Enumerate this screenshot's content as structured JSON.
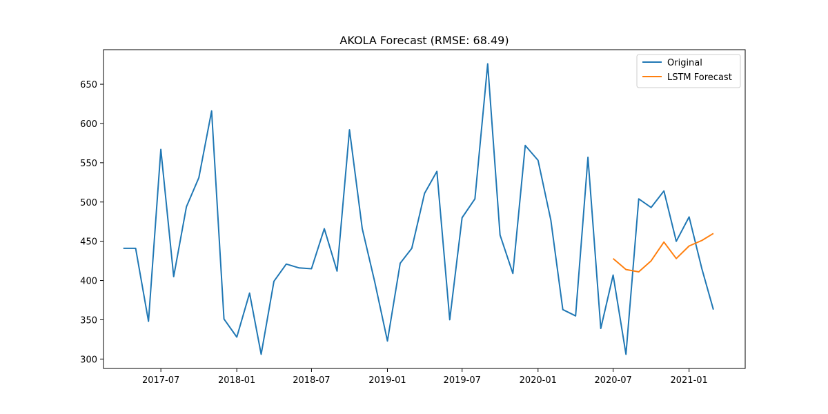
{
  "chart_data": {
    "type": "line",
    "title": "AKOLA Forecast (RMSE: 68.49)",
    "xlabel": "",
    "ylabel": "",
    "x_ticks": [
      "2017-07",
      "2018-01",
      "2018-07",
      "2019-01",
      "2019-07",
      "2020-01",
      "2020-07",
      "2021-01"
    ],
    "y_ticks": [
      300,
      350,
      400,
      450,
      500,
      550,
      600,
      650
    ],
    "xlim": [
      "2017-02-12",
      "2021-05-17"
    ],
    "ylim": [
      288,
      694
    ],
    "grid": false,
    "legend_position": "top-right",
    "series": [
      {
        "name": "Original",
        "color": "#1f77b4",
        "x": [
          "2017-04",
          "2017-05",
          "2017-06",
          "2017-07",
          "2017-08",
          "2017-09",
          "2017-10",
          "2017-11",
          "2017-12",
          "2018-01",
          "2018-02",
          "2018-03",
          "2018-04",
          "2018-05",
          "2018-06",
          "2018-07",
          "2018-08",
          "2018-09",
          "2018-10",
          "2018-11",
          "2018-12",
          "2019-01",
          "2019-02",
          "2019-03",
          "2019-04",
          "2019-05",
          "2019-06",
          "2019-07",
          "2019-08",
          "2019-09",
          "2019-10",
          "2019-11",
          "2019-12",
          "2020-01",
          "2020-02",
          "2020-03",
          "2020-04",
          "2020-05",
          "2020-06",
          "2020-07",
          "2020-08",
          "2020-09",
          "2020-10",
          "2020-11",
          "2020-12",
          "2021-01",
          "2021-02",
          "2021-03"
        ],
        "values": [
          441,
          441,
          348,
          567,
          405,
          494,
          531,
          616,
          351,
          328,
          384,
          306,
          399,
          421,
          416,
          415,
          466,
          412,
          592,
          466,
          399,
          323,
          422,
          441,
          511,
          539,
          350,
          480,
          504,
          676,
          458,
          409,
          572,
          553,
          477,
          363,
          355,
          557,
          339,
          407,
          306,
          504,
          493,
          514,
          450,
          481,
          415,
          363
        ]
      },
      {
        "name": "LSTM Forecast",
        "color": "#ff7f0e",
        "x": [
          "2020-07",
          "2020-08",
          "2020-09",
          "2020-10",
          "2020-11",
          "2020-12",
          "2021-01",
          "2021-02",
          "2021-03"
        ],
        "values": [
          428,
          414,
          411,
          425,
          449,
          428,
          444,
          451,
          460
        ]
      }
    ]
  }
}
